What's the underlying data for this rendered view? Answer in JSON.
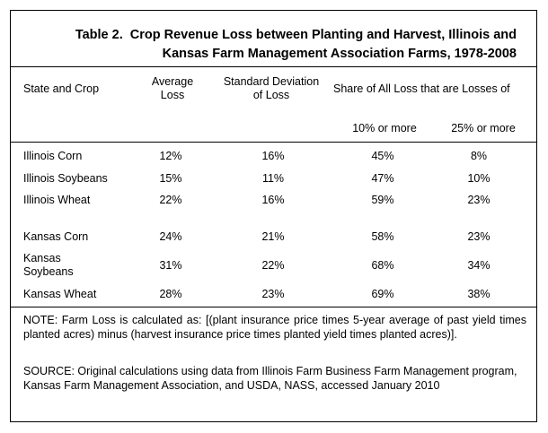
{
  "title": {
    "lead": "Table 2.",
    "line1": "Crop Revenue Loss between Planting and Harvest, Illinois and",
    "line2": "Kansas Farm Management Association Farms, 1978-2008"
  },
  "headers": {
    "state_crop": "State and Crop",
    "avg_loss_1": "Average",
    "avg_loss_2": "Loss",
    "std_dev_1": "Standard Deviation",
    "std_dev_2": "of Loss",
    "share": "Share of All Loss that are Losses of",
    "ten_pct": "10% or more",
    "twentyfive_pct": "25% or more"
  },
  "rows": [
    {
      "crop": "Illinois Corn",
      "avg": "12%",
      "sd": "16%",
      "p10": "45%",
      "p25": "8%"
    },
    {
      "crop": "Illinois Soybeans",
      "avg": "15%",
      "sd": "11%",
      "p10": "47%",
      "p25": "10%"
    },
    {
      "crop": "Illinois Wheat",
      "avg": "22%",
      "sd": "16%",
      "p10": "59%",
      "p25": "23%"
    },
    {
      "crop": "Kansas Corn",
      "avg": "24%",
      "sd": "21%",
      "p10": "58%",
      "p25": "23%"
    },
    {
      "crop_line1": "Kansas",
      "crop_line2": "Soybeans",
      "avg": "31%",
      "sd": "22%",
      "p10": "68%",
      "p25": "34%"
    },
    {
      "crop": "Kansas Wheat",
      "avg": "28%",
      "sd": "23%",
      "p10": "69%",
      "p25": "38%"
    }
  ],
  "note": "NOTE: Farm Loss is calculated as:  [(plant insurance price   times   5-year average of past yield times  planted acres)  minus   (harvest insurance price   times   planted yield   times   planted acres)].",
  "source": "SOURCE: Original calculations using data from Illinois Farm Business Farm Management program, Kansas Farm Management Association, and USDA, NASS, accessed January 2010"
}
